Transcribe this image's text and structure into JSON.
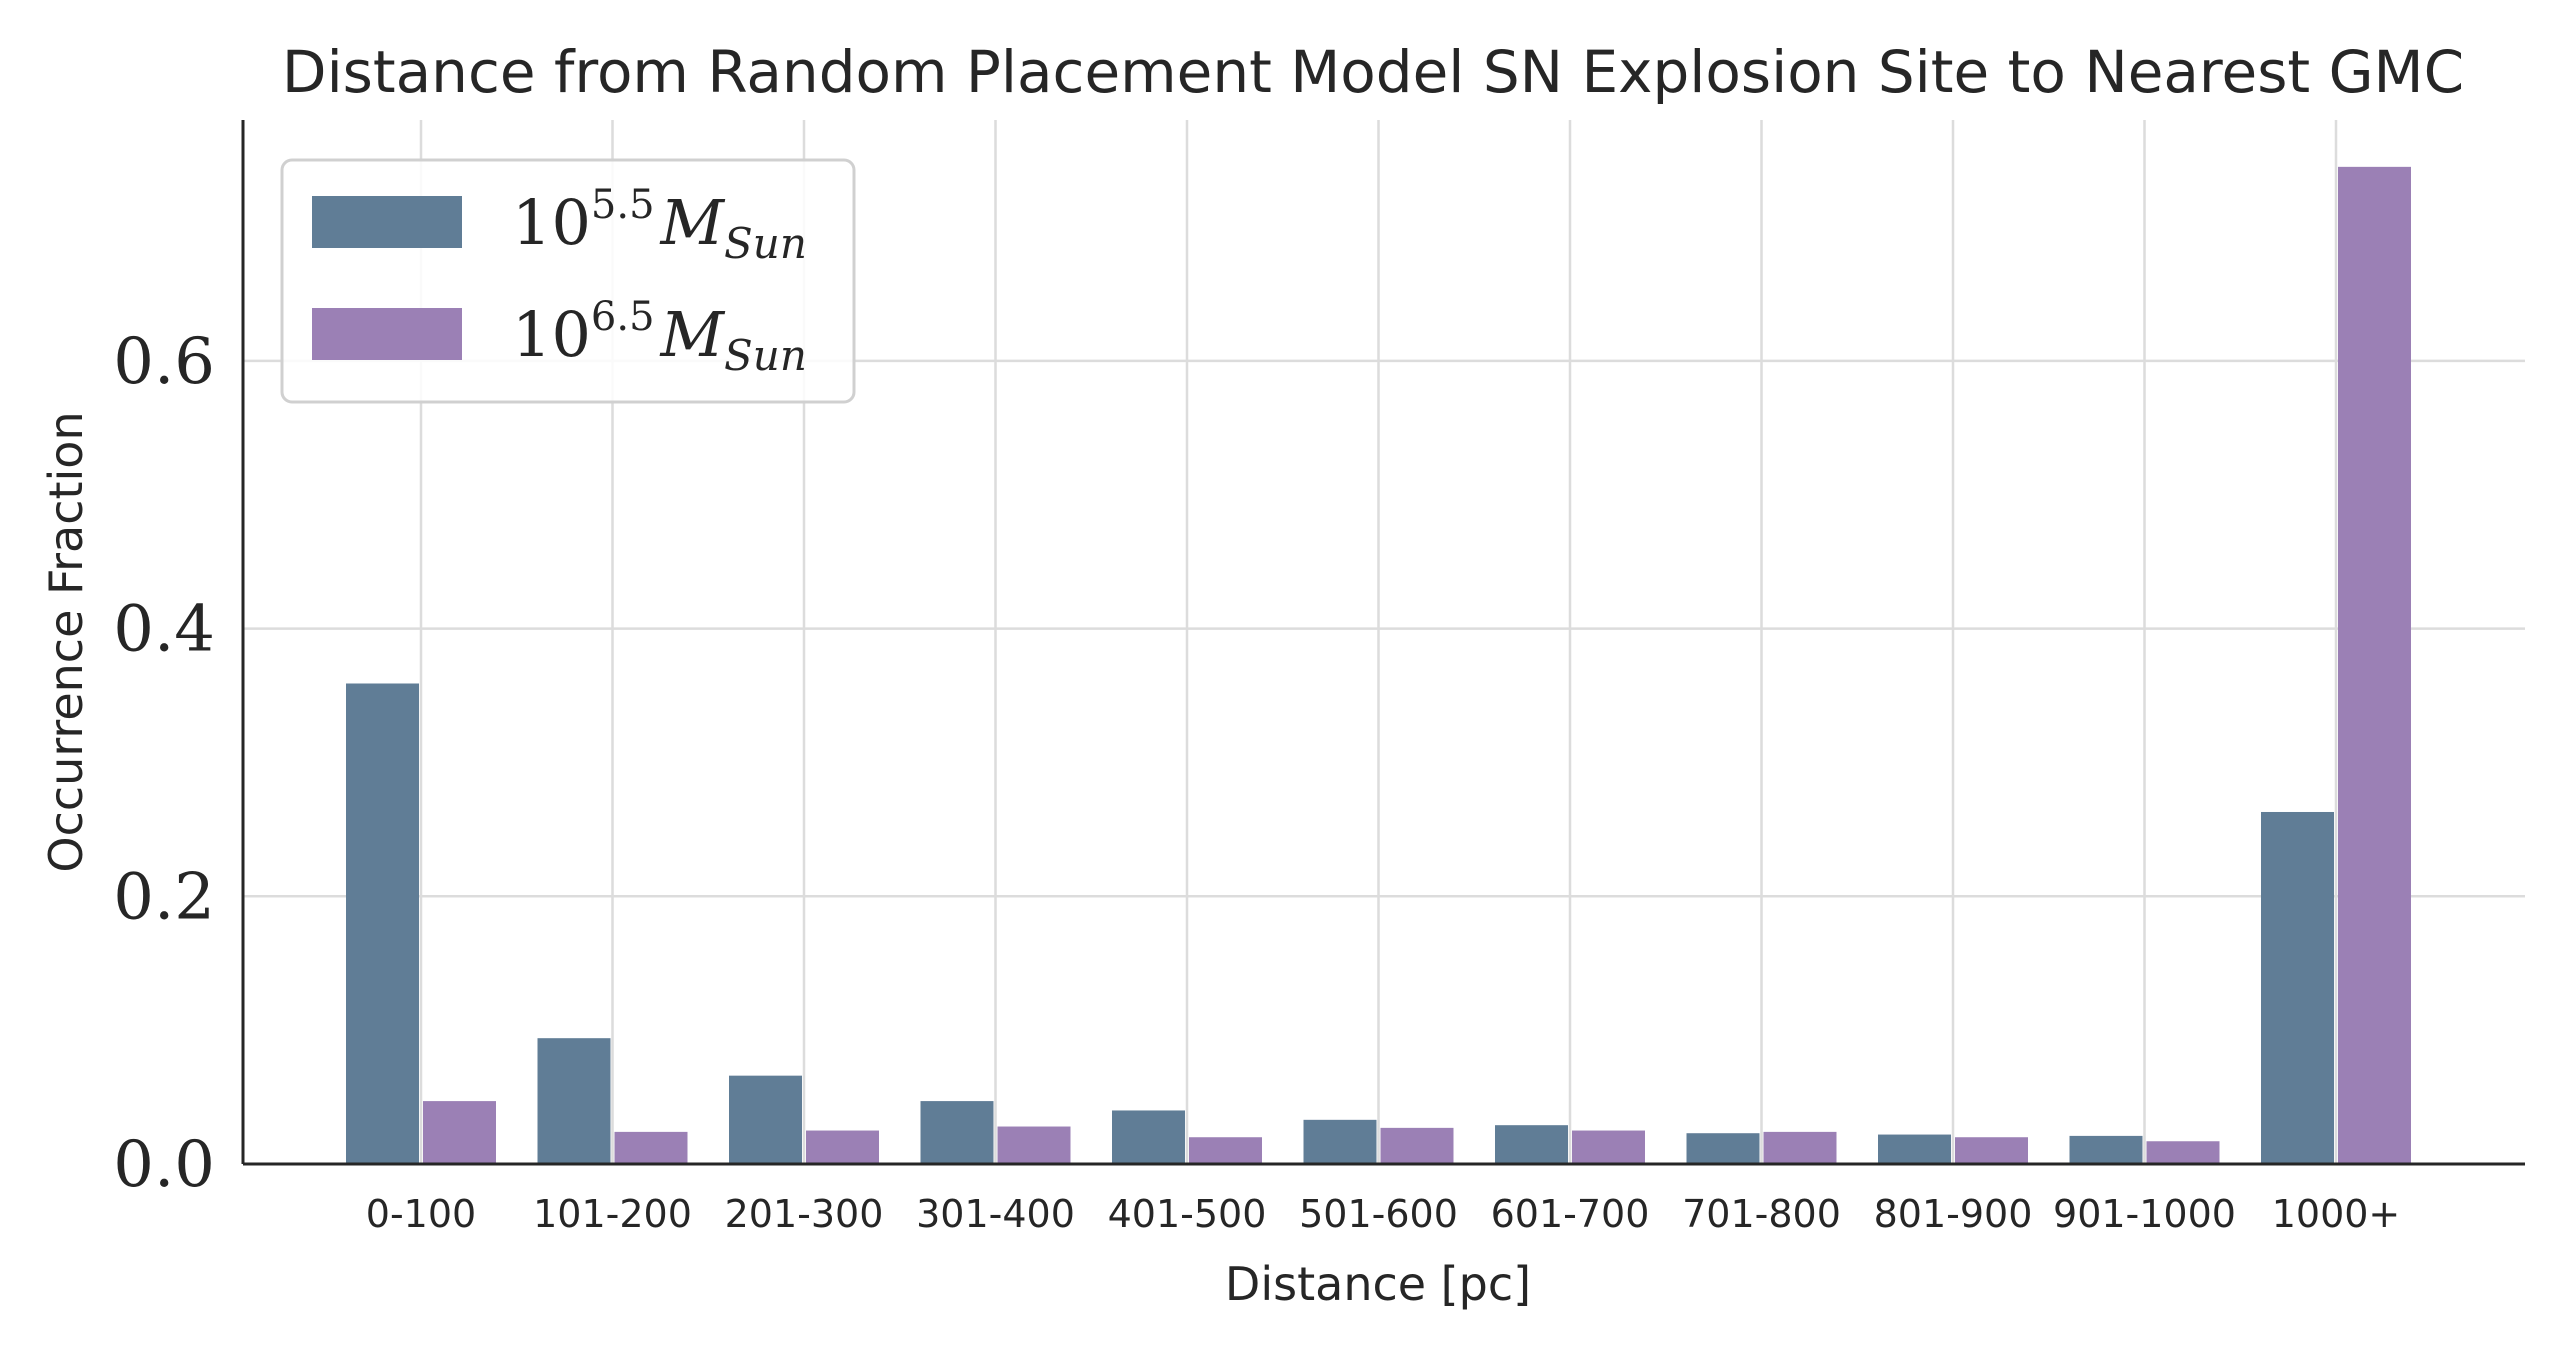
{
  "chart_data": {
    "type": "bar",
    "title": "Distance from Random Placement Model SN Explosion Site to Nearest GMC",
    "xlabel": "Distance [pc]",
    "ylabel": "Occurrence Fraction",
    "categories": [
      "0-100",
      "101-200",
      "201-300",
      "301-400",
      "401-500",
      "501-600",
      "601-700",
      "701-800",
      "801-900",
      "901-1000",
      "1000+"
    ],
    "series": [
      {
        "name": "10^5.5 M_Sun",
        "legend_base": "10",
        "legend_exp": "5.5",
        "legend_m": "M",
        "legend_sub": "Sun",
        "color": "#607d96",
        "values": [
          0.359,
          0.094,
          0.066,
          0.047,
          0.04,
          0.033,
          0.029,
          0.023,
          0.022,
          0.021,
          0.263
        ]
      },
      {
        "name": "10^6.5 M_Sun",
        "legend_base": "10",
        "legend_exp": "6.5",
        "legend_m": "M",
        "legend_sub": "Sun",
        "color": "#9b80b5",
        "values": [
          0.047,
          0.024,
          0.025,
          0.028,
          0.02,
          0.027,
          0.025,
          0.024,
          0.02,
          0.017,
          0.745
        ]
      }
    ],
    "ylim": [
      0,
      0.78
    ],
    "yticks": [
      0.0,
      0.2,
      0.4,
      0.6
    ],
    "ytick_labels": [
      "0.0",
      "0.2",
      "0.4",
      "0.6"
    ],
    "grid": true,
    "legend_position": "top-left"
  }
}
